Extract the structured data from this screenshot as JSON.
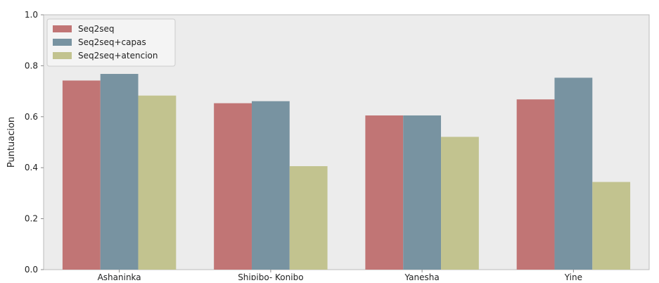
{
  "chart_data": {
    "type": "bar",
    "title": "",
    "xlabel": "",
    "ylabel": "Puntuacion",
    "ylim": [
      0,
      1.0
    ],
    "yticks": [
      "0.0",
      "0.2",
      "0.4",
      "0.6",
      "0.8",
      "1.0"
    ],
    "grid": false,
    "legend_position": "top-left",
    "categories": [
      "Ashaninka",
      "Shipibo- Konibo",
      "Yanesha",
      "Yine"
    ],
    "series": [
      {
        "name": "Seq2seq",
        "color": "#c17575",
        "values": [
          0.742,
          0.653,
          0.605,
          0.668
        ]
      },
      {
        "name": "Seq2seq+capas",
        "color": "#7893a1",
        "values": [
          0.768,
          0.661,
          0.605,
          0.753
        ]
      },
      {
        "name": "Seq2seq+atencion",
        "color": "#c2c38f",
        "values": [
          0.683,
          0.406,
          0.521,
          0.344
        ]
      }
    ],
    "colors": {
      "plot_background": "#ececec",
      "axis": "#bbbbbb"
    }
  }
}
